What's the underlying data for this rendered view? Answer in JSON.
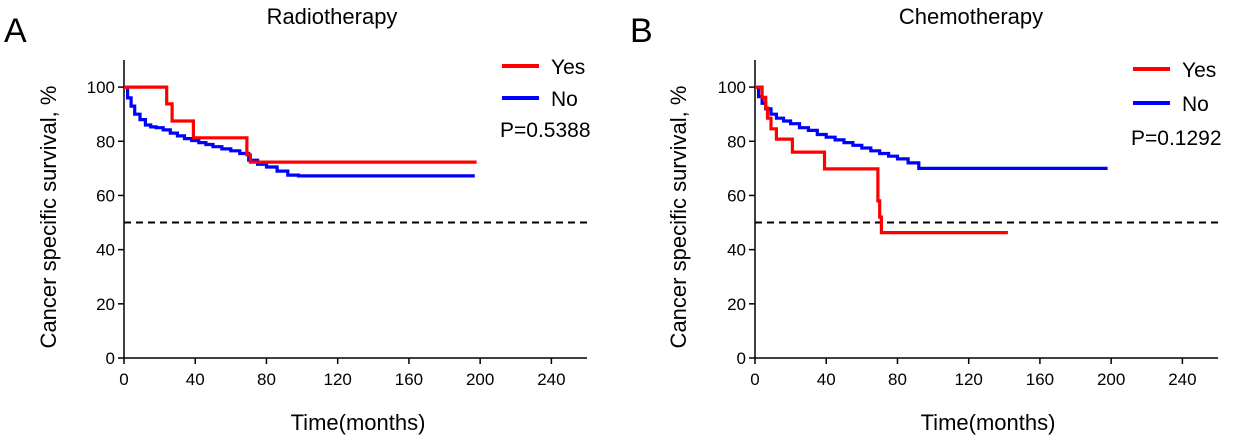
{
  "chart_data": [
    {
      "type": "line",
      "panel_label": "A",
      "title": "Radiotherapy",
      "xlabel": "Time(months)",
      "ylabel": "Cancer specific survival, %",
      "xlim": [
        0,
        260
      ],
      "ylim": [
        0,
        110
      ],
      "xticks": [
        0,
        40,
        80,
        120,
        160,
        200,
        240
      ],
      "yticks": [
        0,
        20,
        40,
        60,
        80,
        100
      ],
      "reference_line": 50,
      "annotation": "P=0.5388",
      "legend_position": "top-right",
      "series": [
        {
          "name": "Yes",
          "color": "#ff0000",
          "x": [
            0,
            24,
            27,
            39,
            69,
            71,
            198
          ],
          "y": [
            100,
            93.8,
            87.5,
            81.3,
            75.0,
            72.3,
            72.3
          ]
        },
        {
          "name": "No",
          "color": "#0000ff",
          "x": [
            0,
            2,
            4,
            6,
            9,
            12,
            15,
            18,
            22,
            26,
            30,
            34,
            38,
            42,
            46,
            50,
            55,
            60,
            65,
            70,
            75,
            80,
            86,
            92,
            98,
            197
          ],
          "y": [
            100,
            96,
            93,
            90,
            88,
            86,
            85.3,
            85,
            84.2,
            83,
            82,
            81,
            80.3,
            79.5,
            78.8,
            78,
            77.2,
            76.5,
            75.5,
            73,
            71.5,
            70.5,
            69,
            67.5,
            67.2,
            67.2
          ]
        }
      ]
    },
    {
      "type": "line",
      "panel_label": "B",
      "title": "Chemotherapy",
      "xlabel": "Time(months)",
      "ylabel": "Cancer specific survival, %",
      "xlim": [
        0,
        260
      ],
      "ylim": [
        0,
        110
      ],
      "xticks": [
        0,
        40,
        80,
        120,
        160,
        200,
        240
      ],
      "yticks": [
        0,
        20,
        40,
        60,
        80,
        100
      ],
      "reference_line": 50,
      "annotation": "P=0.1292",
      "legend_position": "top-right",
      "series": [
        {
          "name": "Yes",
          "color": "#ff0000",
          "x": [
            0,
            4,
            6,
            7,
            9,
            12,
            21,
            39,
            69,
            70,
            71,
            142
          ],
          "y": [
            100,
            96.2,
            92.3,
            88.5,
            84.6,
            80.8,
            76.0,
            69.8,
            58.0,
            52.0,
            46.3,
            46.3
          ]
        },
        {
          "name": "No",
          "color": "#0000ff",
          "x": [
            0,
            2,
            4,
            6,
            9,
            12,
            16,
            20,
            25,
            30,
            35,
            40,
            45,
            50,
            55,
            60,
            65,
            70,
            75,
            80,
            86,
            92,
            198
          ],
          "y": [
            100,
            96.5,
            94,
            92,
            90,
            88.5,
            87.5,
            86.5,
            85,
            84,
            82.5,
            81.5,
            80.5,
            79.5,
            78.5,
            77.5,
            76.5,
            75.5,
            74.5,
            73.5,
            72,
            70,
            70
          ]
        }
      ]
    }
  ]
}
